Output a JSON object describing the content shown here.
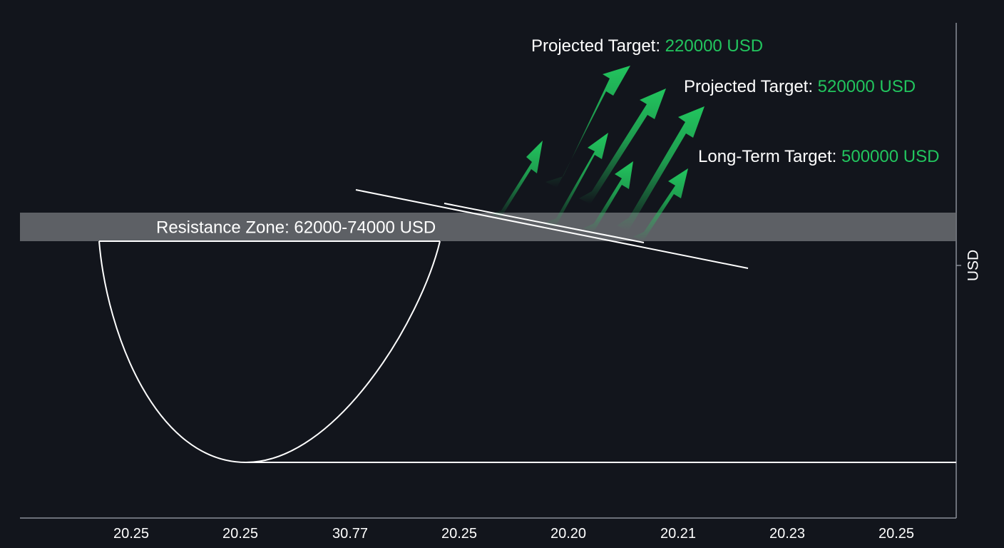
{
  "colors": {
    "background": "#12151c",
    "line": "#ffffff",
    "axis": "#8a8f98",
    "accent_green": "#22c55e",
    "resistance_band": "#6b6d72"
  },
  "chart_data": {
    "type": "line",
    "title": "",
    "xlabel": "",
    "ylabel": "USD",
    "grid": false,
    "x_ticks": [
      "20.25",
      "20.25",
      "30.77",
      "20.25",
      "20.20",
      "20.21",
      "20.23",
      "20.25"
    ],
    "resistance_zone": {
      "text": "Resistance Zone: 62000-74000 USD",
      "low": 62000,
      "high": 74000
    },
    "annotations": [
      {
        "prefix": "Projected Target: ",
        "value": "220000 USD"
      },
      {
        "prefix": "Projected Target: ",
        "value": "520000 USD"
      },
      {
        "prefix": "Long-Term Target: ",
        "value": "500000 USD"
      }
    ]
  }
}
